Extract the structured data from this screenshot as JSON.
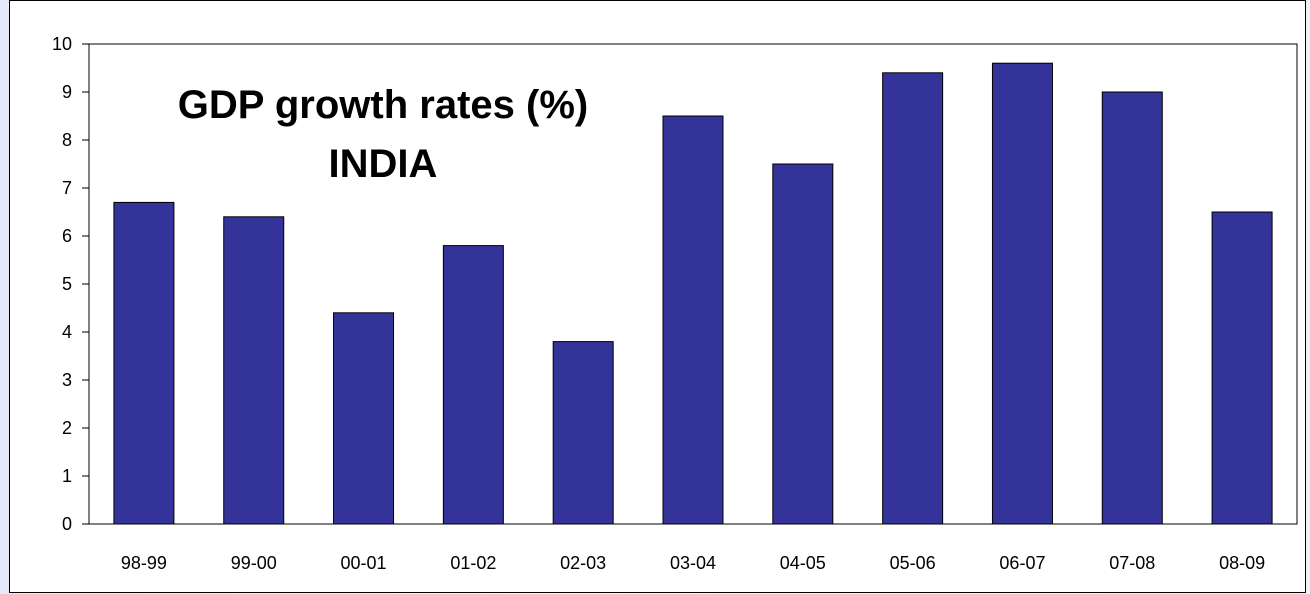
{
  "chart_data": {
    "type": "bar",
    "title": "GDP growth rates (%)",
    "subtitle": "INDIA",
    "categories": [
      "98-99",
      "99-00",
      "00-01",
      "01-02",
      "02-03",
      "03-04",
      "04-05",
      "05-06",
      "06-07",
      "07-08",
      "08-09"
    ],
    "values": [
      6.7,
      6.4,
      4.4,
      5.8,
      3.8,
      8.5,
      7.5,
      9.4,
      9.6,
      9.0,
      6.5
    ],
    "ylim": [
      0,
      10
    ],
    "yticks": [
      0,
      1,
      2,
      3,
      4,
      5,
      6,
      7,
      8,
      9,
      10
    ],
    "grid": false,
    "legend": "none",
    "bar_color": "#333399"
  }
}
